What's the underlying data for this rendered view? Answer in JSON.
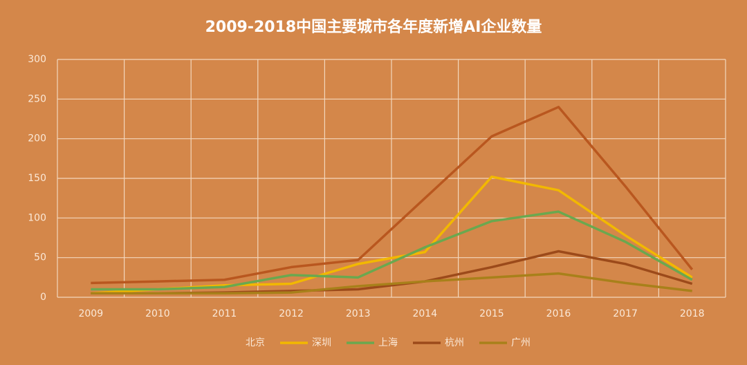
{
  "chart_data": {
    "type": "line",
    "title": "2009-2018中国主要城市各年度新增AI企业数量",
    "categories": [
      "2009",
      "2010",
      "2011",
      "2012",
      "2013",
      "2014",
      "2015",
      "2016",
      "2017",
      "2018"
    ],
    "series": [
      {
        "name": "北京",
        "color": "#b9571f",
        "values": [
          18,
          20,
          22,
          38,
          47,
          125,
          203,
          240,
          140,
          35
        ]
      },
      {
        "name": "深圳",
        "color": "#f2b800",
        "values": [
          5,
          10,
          15,
          17,
          42,
          57,
          152,
          135,
          78,
          25
        ]
      },
      {
        "name": "上海",
        "color": "#6aa84f",
        "values": [
          10,
          10,
          13,
          28,
          25,
          63,
          96,
          108,
          70,
          22
        ]
      },
      {
        "name": "杭州",
        "color": "#9c4a1a",
        "values": [
          5,
          5,
          6,
          8,
          10,
          20,
          38,
          58,
          42,
          17
        ]
      },
      {
        "name": "广州",
        "color": "#a8801a",
        "values": [
          5,
          5,
          5,
          6,
          14,
          20,
          25,
          30,
          18,
          8
        ]
      }
    ],
    "ylim": [
      0,
      300
    ],
    "yticks": [
      0,
      50,
      100,
      150,
      200,
      250,
      300
    ],
    "grid": true
  }
}
